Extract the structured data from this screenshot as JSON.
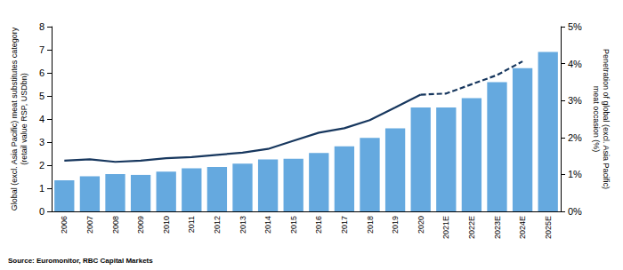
{
  "chart_data": {
    "type": "bar",
    "source": "Source: Euromonitor, RBC Capital Markets",
    "y_label": "Global (excl. Asia Pacific) meat substitutes category\n(retail value RSP, USDbn)",
    "y2_label": "Penetration of global (excl. Asia Pacific)\nmeat occasion (%)",
    "categories": [
      "2006",
      "2007",
      "2008",
      "2009",
      "2010",
      "2011",
      "2012",
      "2013",
      "2014",
      "2015",
      "2016",
      "2017",
      "2018",
      "2019",
      "2020",
      "2021E",
      "2022E",
      "2023E",
      "2024E",
      "2025E"
    ],
    "series": [
      {
        "type": "bar",
        "color": "#65a9df",
        "values": [
          1.35,
          1.52,
          1.62,
          1.58,
          1.72,
          1.87,
          1.92,
          2.07,
          2.25,
          2.28,
          2.53,
          2.82,
          3.18,
          3.6,
          4.5,
          4.5,
          4.9,
          5.6,
          6.2,
          6.9
        ]
      },
      {
        "type": "line",
        "axis": "y2",
        "color": "#17375e",
        "line_style": "solid",
        "values": [
          1.375,
          1.41,
          1.34,
          1.375,
          1.44,
          1.47,
          1.53,
          1.59,
          1.69,
          1.91,
          2.13,
          2.25,
          2.47,
          2.81,
          3.16,
          null,
          null,
          null,
          null,
          null
        ]
      },
      {
        "type": "line",
        "axis": "y2",
        "color": "#17375e",
        "line_style": "dashed",
        "values": [
          null,
          null,
          null,
          null,
          null,
          null,
          null,
          null,
          null,
          null,
          null,
          null,
          null,
          null,
          3.16,
          3.19,
          3.44,
          3.69,
          4.06,
          null
        ]
      }
    ],
    "ylim": [
      0,
      8
    ],
    "yticks": [
      0,
      1,
      2,
      3,
      4,
      5,
      6,
      7,
      8
    ],
    "y2lim": [
      0,
      5
    ],
    "y2ticks": [
      {
        "value": 0,
        "label": "0%"
      },
      {
        "value": 1,
        "label": "1%"
      },
      {
        "value": 2,
        "label": "2%"
      },
      {
        "value": 3,
        "label": "3%"
      },
      {
        "value": 4,
        "label": "4%"
      },
      {
        "value": 5,
        "label": "5%"
      }
    ],
    "grid": false
  }
}
